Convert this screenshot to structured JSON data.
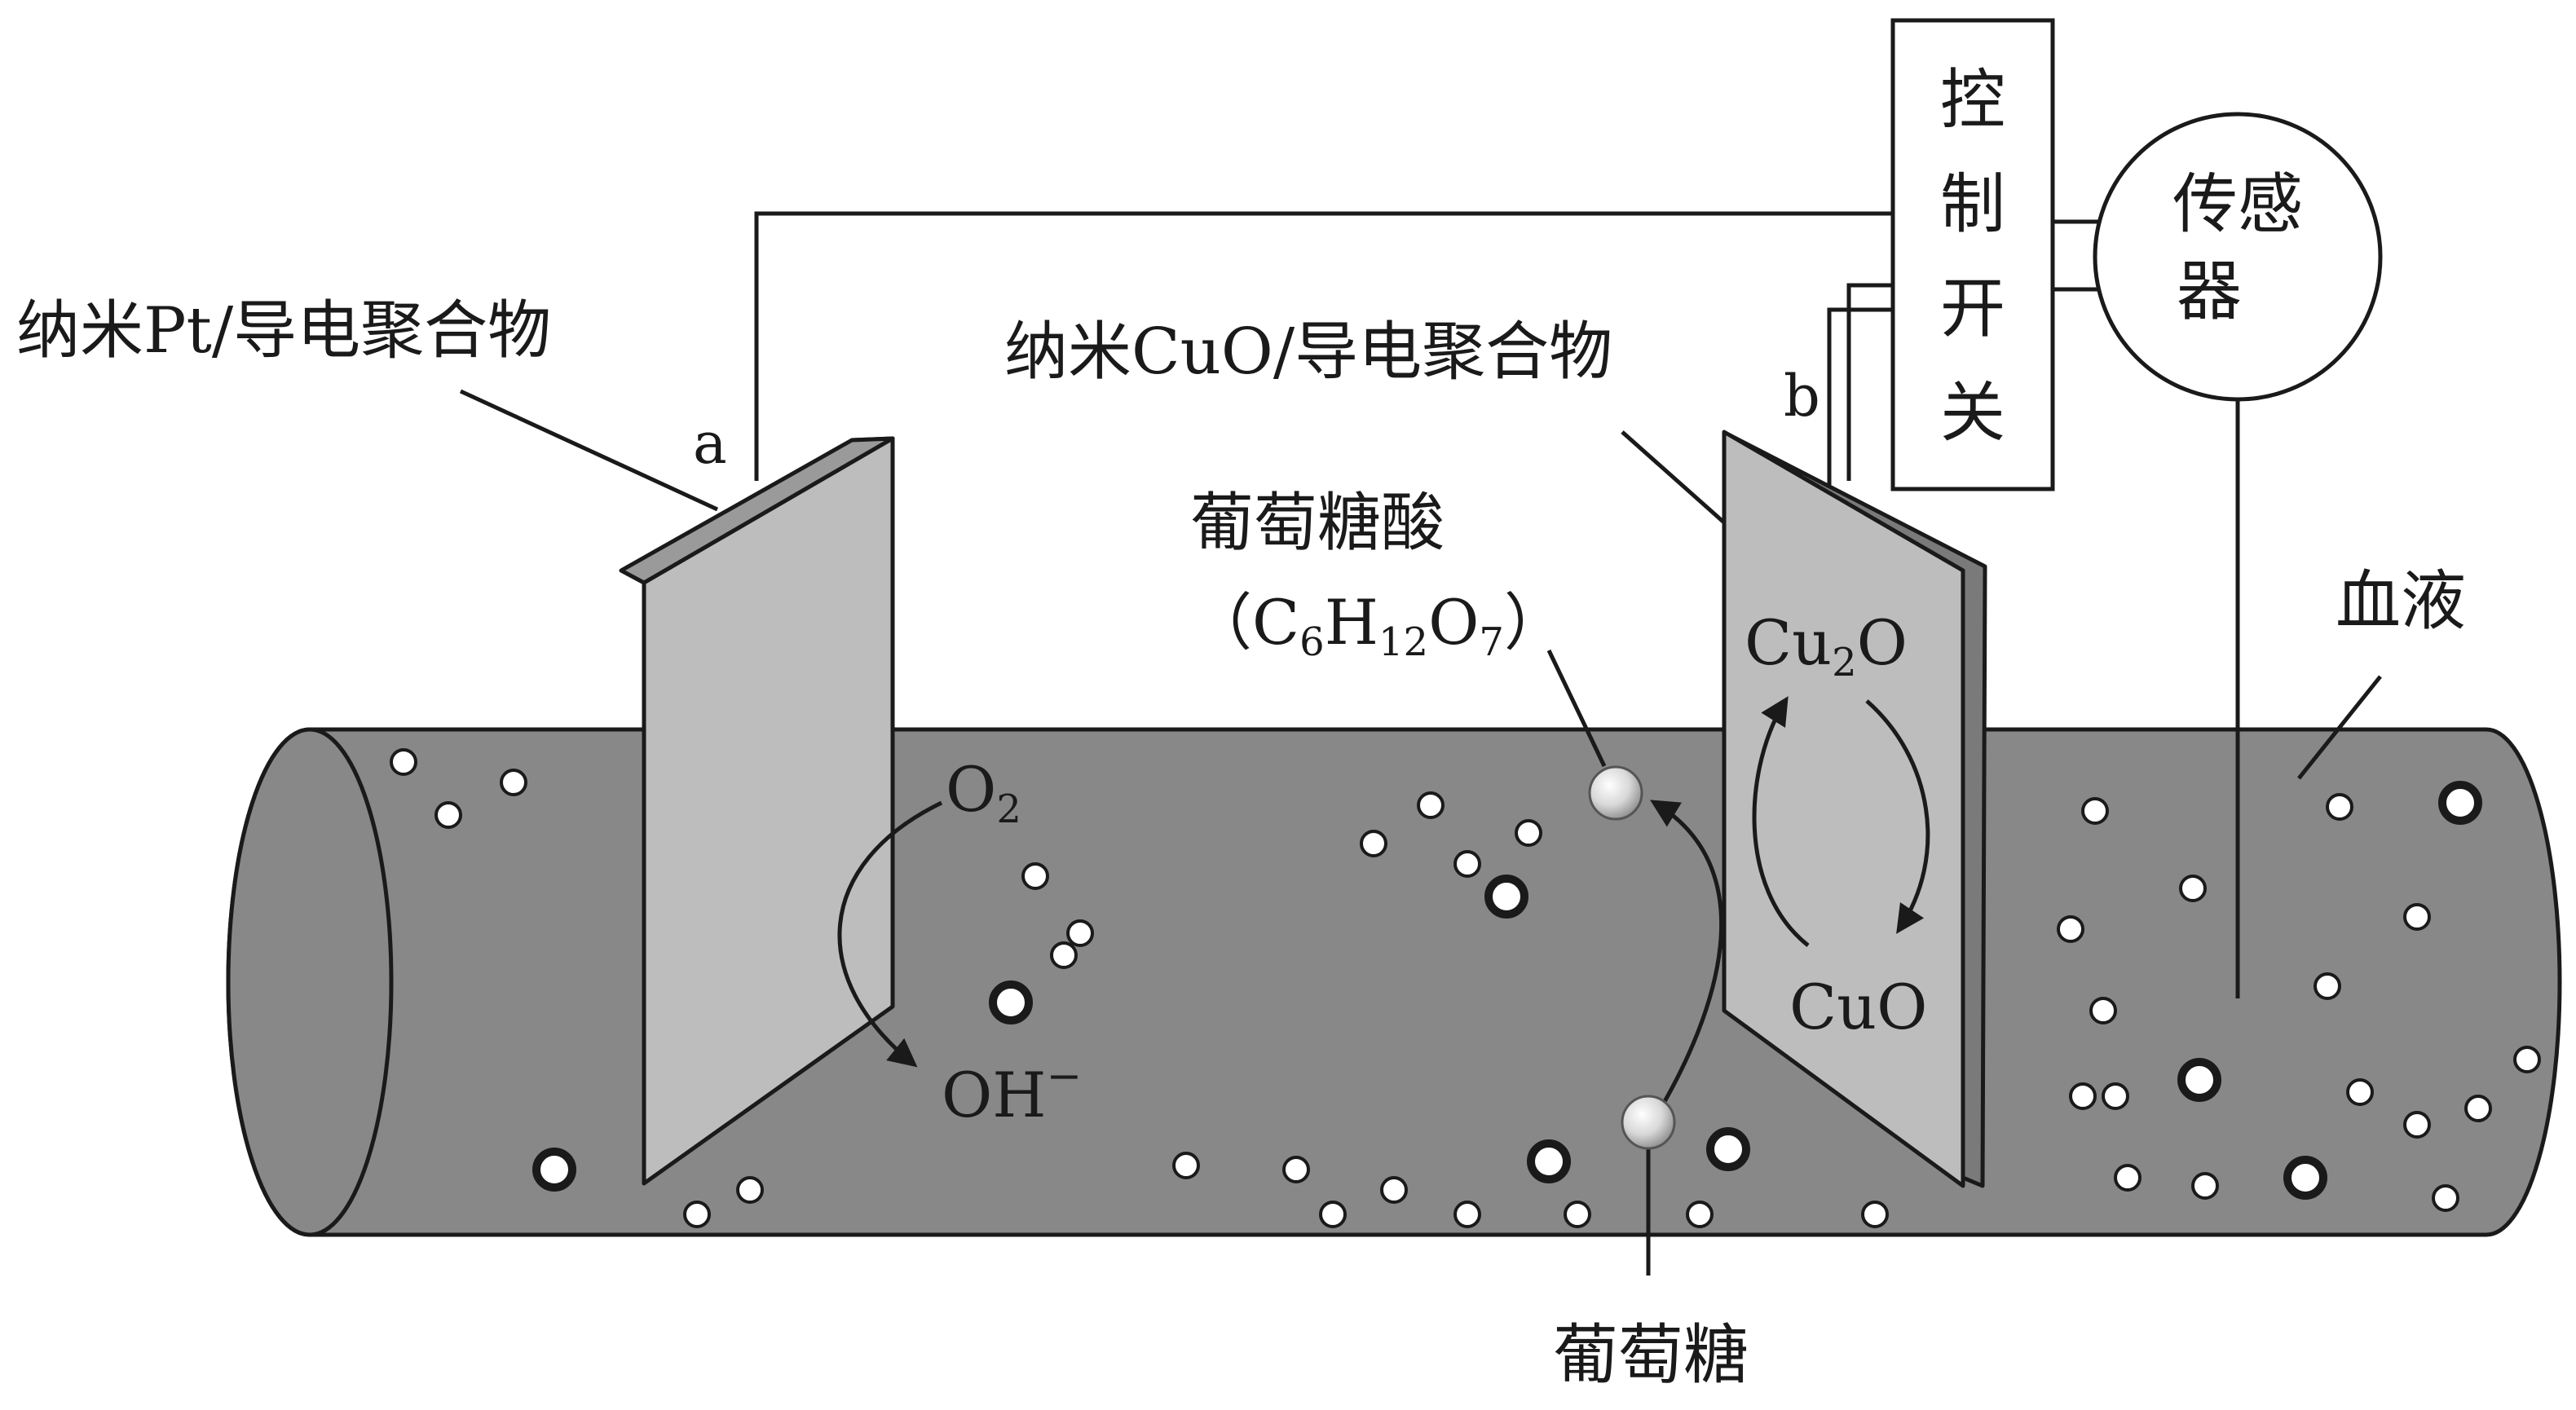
{
  "labels": {
    "electrode_a_material": "纳米Pt/导电聚合物",
    "electrode_b_material": "纳米CuO/导电聚合物",
    "electrode_a": "a",
    "electrode_b": "b",
    "control_switch": "控制开关",
    "sensor": "传感器",
    "blood": "血液",
    "gluconic_acid": "葡萄糖酸",
    "gluconic_acid_formula": "（C6H12O7）",
    "glucose": "葡萄糖",
    "o2": "O2",
    "oh": "OH−",
    "cu2o": "Cu2O",
    "cuo": "CuO"
  },
  "colors": {
    "vessel": "#888888",
    "electrode": "#bdbdbd",
    "line": "#1a1a1a",
    "bubble": "#ffffff"
  }
}
